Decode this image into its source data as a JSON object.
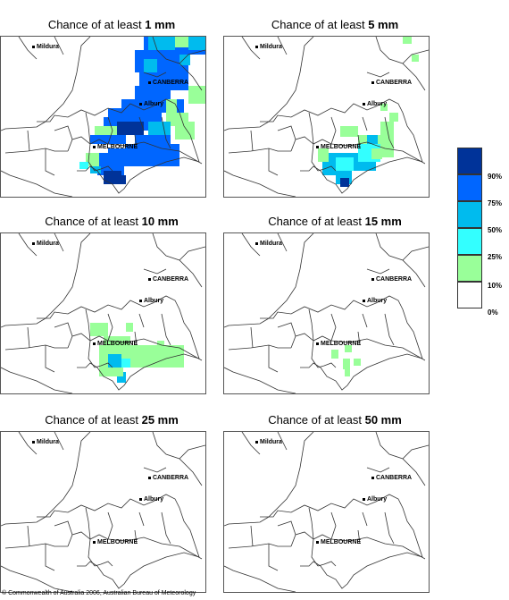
{
  "panels": [
    {
      "title_prefix": "Chance of at least ",
      "amount": "1 mm"
    },
    {
      "title_prefix": "Chance of at least ",
      "amount": "5 mm"
    },
    {
      "title_prefix": "Chance of at least ",
      "amount": "10 mm"
    },
    {
      "title_prefix": "Chance of at least ",
      "amount": "15 mm"
    },
    {
      "title_prefix": "Chance of at least ",
      "amount": "25 mm"
    },
    {
      "title_prefix": "Chance of at least ",
      "amount": "50 mm"
    }
  ],
  "places": {
    "mildura": "Mildura",
    "canberra": "CANBERRA",
    "albury": "Albury",
    "melbourne": "MELBOURNE"
  },
  "legend": {
    "labels": [
      "90%",
      "75%",
      "50%",
      "25%",
      "10%",
      "0%"
    ],
    "colors": [
      "#003399",
      "#0066ff",
      "#00bbee",
      "#33ffff",
      "#99ff99",
      "#ffffff"
    ]
  },
  "copyright": "© Commonwealth of Australia 2006, Australian Bureau of Meteorology"
}
